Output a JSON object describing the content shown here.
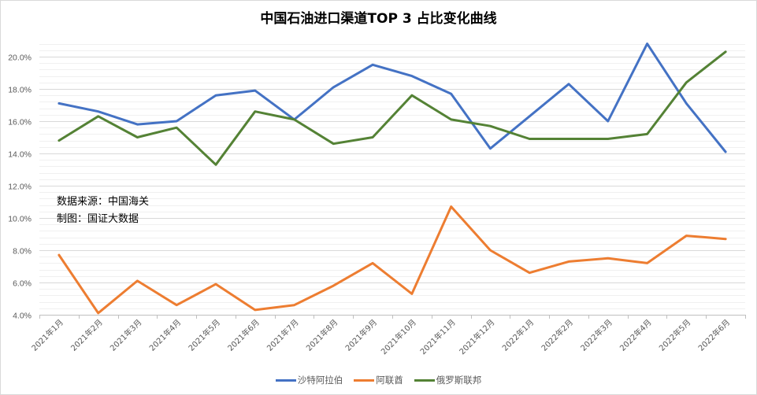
{
  "chart_data": {
    "type": "line",
    "title": "中国石油进口渠道TOP 3 占比变化曲线",
    "xlabel": "",
    "ylabel": "",
    "ylim": [
      0.04,
      0.21
    ],
    "y_axis": {
      "min": 4.0,
      "max": 20.0,
      "major_step": 2.0,
      "minor_step": 0.4,
      "tick_labels": [
        "4.0%",
        "6.0%",
        "8.0%",
        "10.0%",
        "12.0%",
        "14.0%",
        "16.0%",
        "18.0%",
        "20.0%"
      ]
    },
    "grid": true,
    "legend_position": "bottom",
    "categories": [
      "2021年1月",
      "2021年2月",
      "2021年3月",
      "2021年4月",
      "2021年5月",
      "2021年6月",
      "2021年7月",
      "2021年8月",
      "2021年9月",
      "2021年10月",
      "2021年11月",
      "2021年12月",
      "2022年1月",
      "2022年2月",
      "2022年3月",
      "2022年4月",
      "2022年5月",
      "2022年6月"
    ],
    "series": [
      {
        "name": "沙特阿拉伯",
        "color": "#4472c4",
        "values": [
          17.1,
          16.6,
          15.8,
          16.0,
          17.6,
          17.9,
          16.1,
          18.1,
          19.5,
          18.8,
          17.7,
          14.3,
          16.3,
          18.3,
          16.0,
          20.8,
          17.1,
          14.1
        ]
      },
      {
        "name": "阿联酋",
        "color": "#ed7d31",
        "values": [
          7.7,
          4.1,
          6.1,
          4.6,
          5.9,
          4.3,
          4.6,
          5.8,
          7.2,
          5.3,
          10.7,
          8.0,
          6.6,
          7.3,
          7.5,
          7.2,
          8.9,
          8.7
        ]
      },
      {
        "name": "俄罗斯联邦",
        "color": "#548235",
        "values": [
          14.8,
          16.3,
          15.0,
          15.6,
          13.3,
          16.6,
          16.1,
          14.6,
          15.0,
          17.6,
          16.1,
          15.7,
          14.9,
          14.9,
          14.9,
          15.2,
          18.4,
          20.3
        ]
      }
    ],
    "annotations": [
      "数据来源：中国海关",
      "制图：国证大数据"
    ]
  },
  "title": "中国石油进口渠道TOP 3 占比变化曲线",
  "notes": {
    "source": "数据来源：中国海关",
    "author": "制图：国证大数据"
  },
  "legend": [
    {
      "label": "沙特阿拉伯",
      "color": "#4472c4"
    },
    {
      "label": "阿联酋",
      "color": "#ed7d31"
    },
    {
      "label": "俄罗斯联邦",
      "color": "#548235"
    }
  ],
  "style": {
    "grid_major": "#d9d9d9",
    "grid_minor": "#f0f0f0",
    "axis": "#bfbfbf"
  }
}
